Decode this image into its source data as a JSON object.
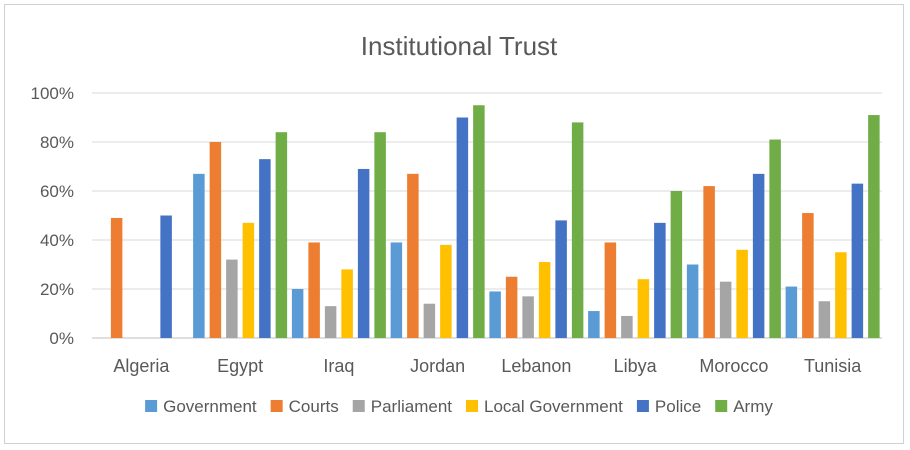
{
  "chart_data": {
    "type": "bar",
    "title": "Institutional Trust",
    "xlabel": "",
    "ylabel": "",
    "ylim": [
      0,
      100
    ],
    "yticks": [
      "0%",
      "20%",
      "40%",
      "60%",
      "80%",
      "100%"
    ],
    "grid": true,
    "legend_position": "bottom",
    "categories": [
      "Algeria",
      "Egypt",
      "Iraq",
      "Jordan",
      "Lebanon",
      "Libya",
      "Morocco",
      "Tunisia"
    ],
    "series": [
      {
        "name": "Government",
        "color": "#5b9bd5",
        "values": [
          0,
          67,
          20,
          39,
          19,
          11,
          30,
          21
        ]
      },
      {
        "name": "Courts",
        "color": "#ed7d31",
        "values": [
          49,
          80,
          39,
          67,
          25,
          39,
          62,
          51
        ]
      },
      {
        "name": "Parliament",
        "color": "#a5a5a5",
        "values": [
          0,
          32,
          13,
          14,
          17,
          9,
          23,
          15
        ]
      },
      {
        "name": "Local Government",
        "color": "#ffc000",
        "values": [
          0,
          47,
          28,
          38,
          31,
          24,
          36,
          35
        ]
      },
      {
        "name": "Police",
        "color": "#4472c4",
        "values": [
          50,
          73,
          69,
          90,
          48,
          47,
          67,
          63
        ]
      },
      {
        "name": "Army",
        "color": "#70ad47",
        "values": [
          0,
          84,
          84,
          95,
          88,
          60,
          81,
          91
        ]
      }
    ]
  }
}
